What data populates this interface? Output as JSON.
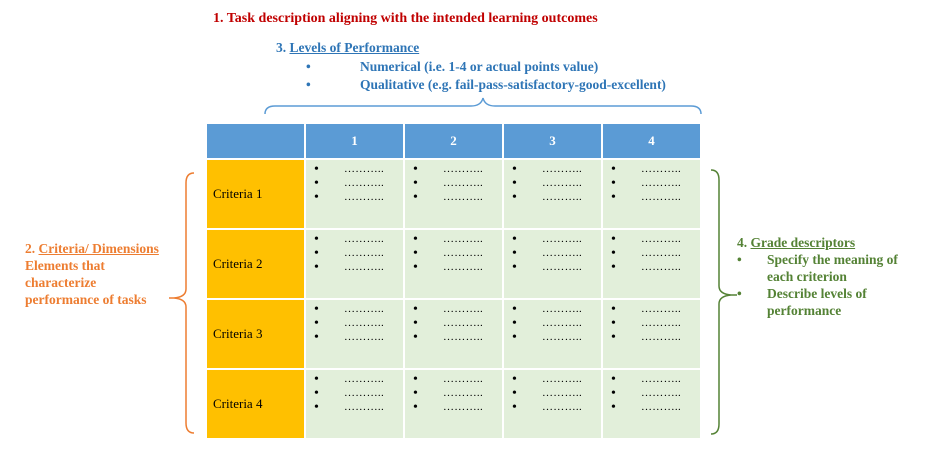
{
  "task_description": "1.  Task description aligning with the intended learning outcomes",
  "levels_of_performance": {
    "heading_number": "3.",
    "heading": "Levels of Performance",
    "items": [
      "Numerical (i.e. 1-4 or actual points value)",
      "Qualitative (e.g. fail-pass-satisfactory-good-excellent)"
    ]
  },
  "criteria_label": {
    "number": "2.",
    "heading": "Criteria/ Dimensions",
    "lines": [
      "Elements that",
      "characterize",
      "performance of tasks"
    ]
  },
  "grade_descriptors": {
    "number": "4.",
    "heading": "Grade descriptors",
    "items": [
      {
        "line1": "Specify the meaning of",
        "line2": "each criterion"
      },
      {
        "line1": "Describe levels of",
        "line2": "performance"
      }
    ]
  },
  "table": {
    "columns": [
      "1",
      "2",
      "3",
      "4"
    ],
    "rows": [
      "Criteria 1",
      "Criteria 2",
      "Criteria 3",
      "Criteria 4"
    ],
    "bullet": "•",
    "placeholder": "………..",
    "bullets_per_cell": 3
  },
  "colors": {
    "red": "#c00000",
    "blue": "#2e75b6",
    "orange": "#ed7d31",
    "green": "#548235",
    "header_blue": "#5b9bd5",
    "criteria_yellow": "#ffc000",
    "cell_green": "#e2efda"
  }
}
